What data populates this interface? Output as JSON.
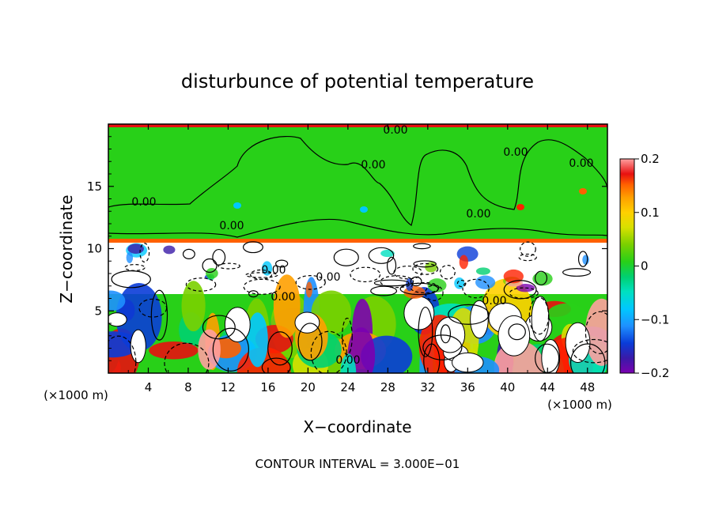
{
  "chart_data": {
    "type": "heatmap",
    "title": "disturbunce of potential temperature",
    "xlabel": "X−coordinate",
    "ylabel": "Z−coordinate",
    "x_unit_left": "(×1000 m)",
    "x_unit_right": "(×1000 m)",
    "footer": "CONTOUR INTERVAL = 3.000E−01",
    "xlim": [
      0,
      50
    ],
    "ylim": [
      0,
      20
    ],
    "x_ticks": [
      "4",
      "8",
      "12",
      "16",
      "20",
      "24",
      "28",
      "32",
      "36",
      "40",
      "44",
      "48"
    ],
    "y_ticks": [
      "5",
      "10",
      "15"
    ],
    "colorbar": {
      "range": [
        -0.2,
        0.2
      ],
      "tick_labels": [
        "0.2",
        "0.1",
        "0",
        "−0.1",
        "−0.2"
      ],
      "colors": [
        "#7a00b0",
        "#3a1aa8",
        "#0a3cd8",
        "#1e90ff",
        "#00c8ff",
        "#00e0c0",
        "#00d070",
        "#28d018",
        "#7ad000",
        "#d8e000",
        "#ffd000",
        "#ffa000",
        "#ff6000",
        "#ff2000",
        "#e81010",
        "#ffa0a0"
      ]
    },
    "zero_contour_labels": [
      "0.00",
      "0.00",
      "0.00",
      "0.00",
      "0.00",
      "0.00",
      "0.00",
      "0.00",
      "0.00",
      "0.00",
      "0.00",
      "0.00"
    ],
    "background_value": 0.0
  }
}
